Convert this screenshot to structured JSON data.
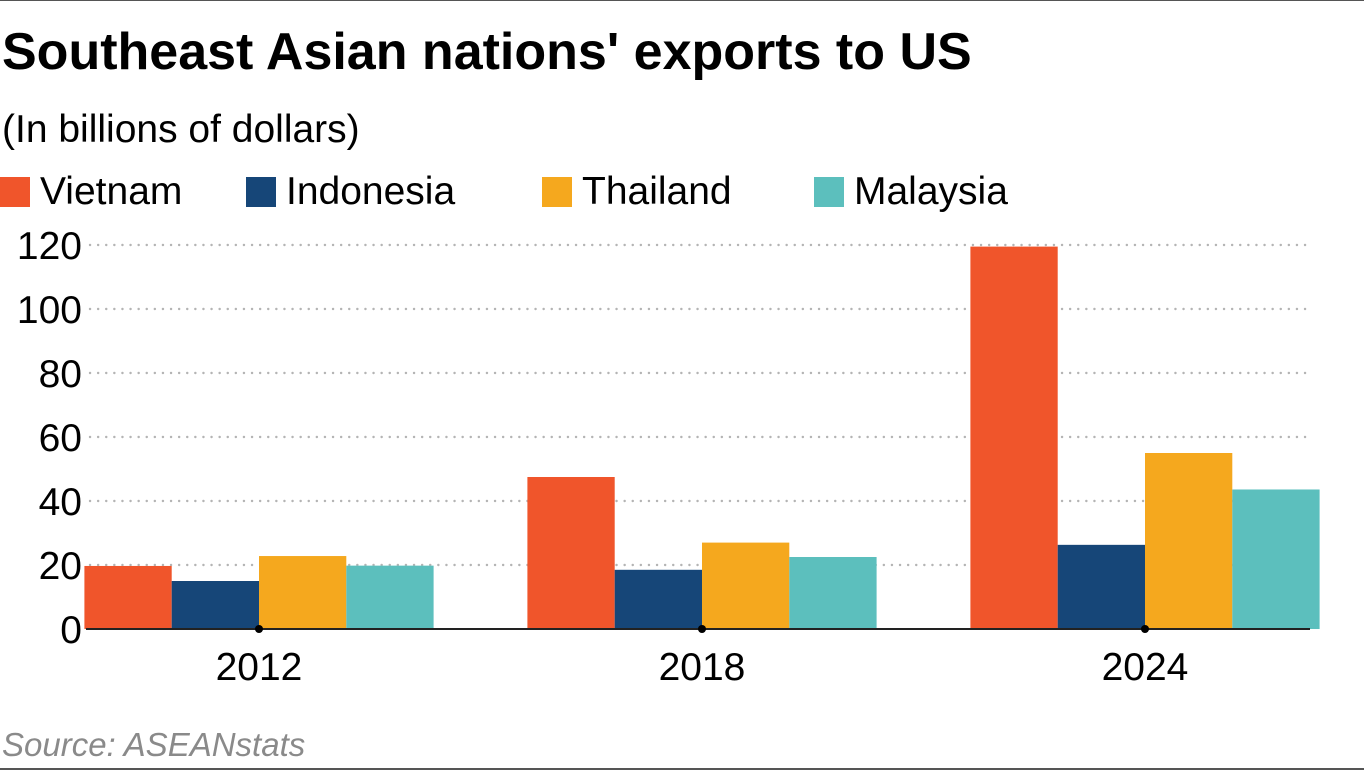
{
  "title": "Southeast Asian nations' exports to US",
  "subtitle": "(In billions of dollars)",
  "source": "Source: ASEANstats",
  "chart_data": {
    "type": "bar",
    "title": "Southeast Asian nations' exports to US",
    "subtitle": "(In billions of dollars)",
    "categories": [
      "2012",
      "2018",
      "2024"
    ],
    "series": [
      {
        "name": "Vietnam",
        "color": "#f0552b",
        "values": [
          19.7,
          47.5,
          119.5
        ]
      },
      {
        "name": "Indonesia",
        "color": "#164678",
        "values": [
          15.0,
          18.5,
          26.3
        ]
      },
      {
        "name": "Thailand",
        "color": "#f5a81e",
        "values": [
          22.8,
          27.0,
          55.0
        ]
      },
      {
        "name": "Malaysia",
        "color": "#5cbfbd",
        "values": [
          19.8,
          22.5,
          43.6
        ]
      }
    ],
    "ylim": [
      0,
      120
    ],
    "yticks": [
      0,
      20,
      40,
      60,
      80,
      100,
      120
    ],
    "grid": true,
    "legend_position": "top-left",
    "xlabel": "",
    "ylabel": ""
  }
}
